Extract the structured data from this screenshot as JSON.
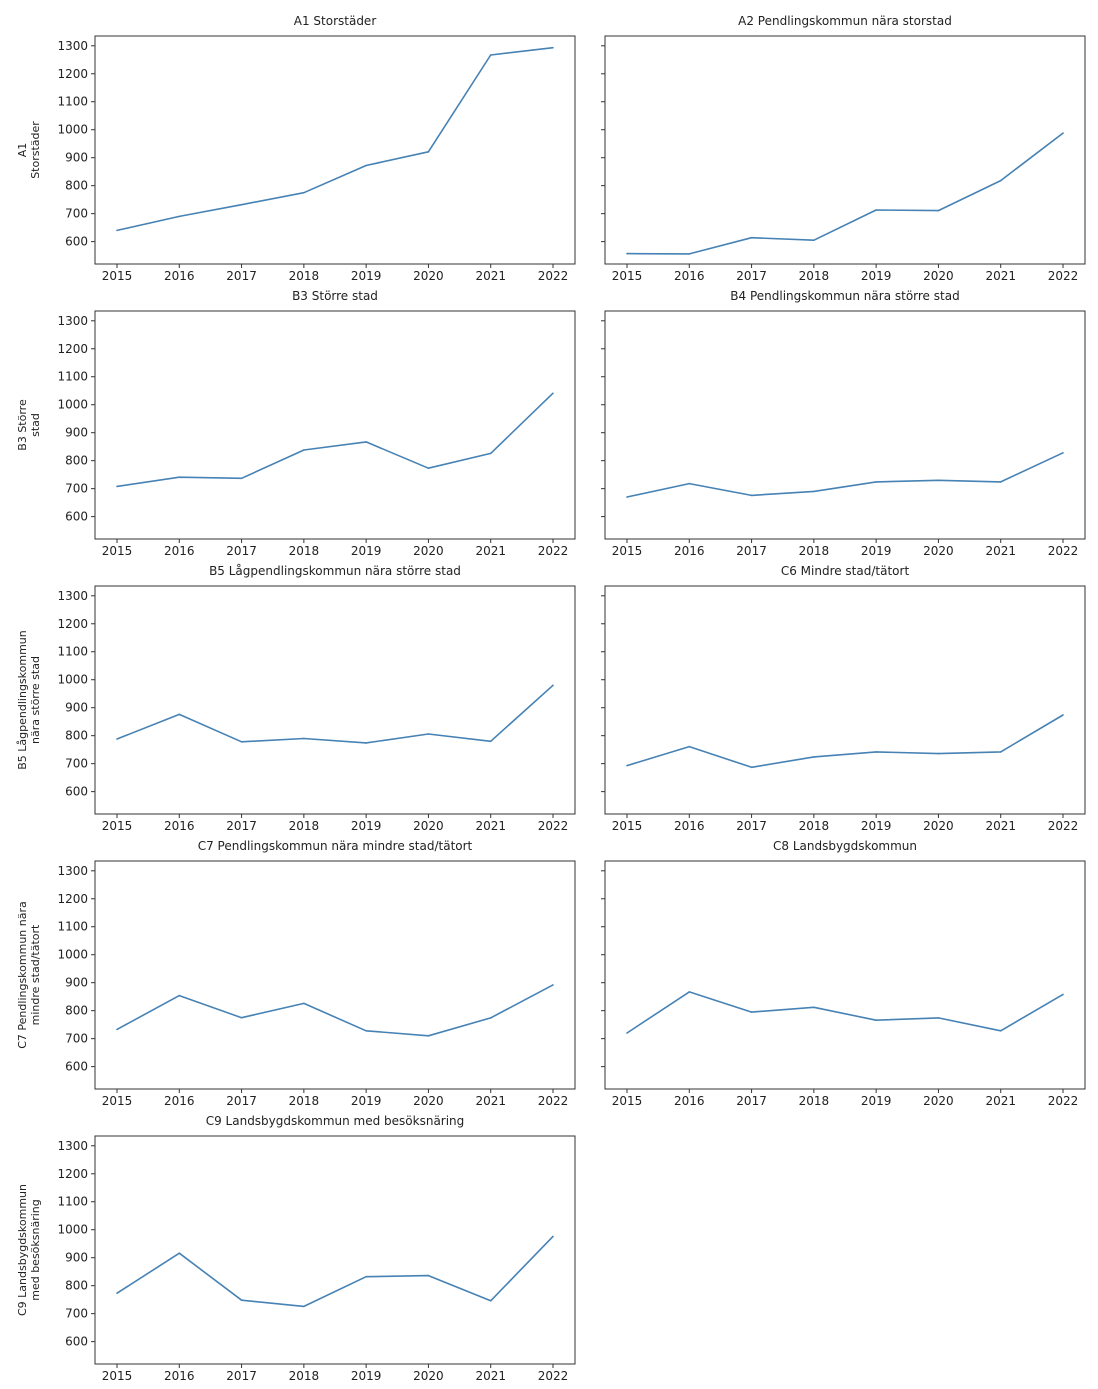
{
  "line_color": "#4682b4",
  "chart_data": [
    {
      "type": "line",
      "title": "A1 Storstäder",
      "ylabel": [
        "A1",
        "Storstäder"
      ],
      "x": [
        "2015",
        "2016",
        "2017",
        "2018",
        "2019",
        "2020",
        "2021",
        "2022"
      ],
      "y": [
        640,
        690,
        732,
        775,
        872,
        921,
        1267,
        1293
      ],
      "ylim": [
        520,
        1335
      ],
      "yticks": [
        600,
        700,
        800,
        900,
        1000,
        1100,
        1200,
        1300
      ],
      "show_ytick_labels": true
    },
    {
      "type": "line",
      "title": "A2 Pendlingskommun nära storstad",
      "ylabel": [],
      "x": [
        "2015",
        "2016",
        "2017",
        "2018",
        "2019",
        "2020",
        "2021",
        "2022"
      ],
      "y": [
        557,
        556,
        614,
        605,
        713,
        711,
        818,
        988
      ],
      "ylim": [
        520,
        1335
      ],
      "yticks": [
        600,
        700,
        800,
        900,
        1000,
        1100,
        1200,
        1300
      ],
      "show_ytick_labels": false
    },
    {
      "type": "line",
      "title": "B3 Större stad",
      "ylabel": [
        "B3 Större",
        "stad"
      ],
      "x": [
        "2015",
        "2016",
        "2017",
        "2018",
        "2019",
        "2020",
        "2021",
        "2022"
      ],
      "y": [
        708,
        741,
        737,
        838,
        867,
        773,
        826,
        1041
      ],
      "ylim": [
        520,
        1335
      ],
      "yticks": [
        600,
        700,
        800,
        900,
        1000,
        1100,
        1200,
        1300
      ],
      "show_ytick_labels": true
    },
    {
      "type": "line",
      "title": "B4 Pendlingskommun nära större stad",
      "ylabel": [],
      "x": [
        "2015",
        "2016",
        "2017",
        "2018",
        "2019",
        "2020",
        "2021",
        "2022"
      ],
      "y": [
        670,
        718,
        676,
        690,
        724,
        730,
        724,
        828
      ],
      "ylim": [
        520,
        1335
      ],
      "yticks": [
        600,
        700,
        800,
        900,
        1000,
        1100,
        1200,
        1300
      ],
      "show_ytick_labels": false
    },
    {
      "type": "line",
      "title": "B5 Lågpendlingskommun nära större stad",
      "ylabel": [
        "B5 Lågpendlingskommun",
        "nära större stad"
      ],
      "x": [
        "2015",
        "2016",
        "2017",
        "2018",
        "2019",
        "2020",
        "2021",
        "2022"
      ],
      "y": [
        788,
        876,
        778,
        790,
        774,
        806,
        780,
        980
      ],
      "ylim": [
        520,
        1335
      ],
      "yticks": [
        600,
        700,
        800,
        900,
        1000,
        1100,
        1200,
        1300
      ],
      "show_ytick_labels": true
    },
    {
      "type": "line",
      "title": "C6 Mindre stad/tätort",
      "ylabel": [],
      "x": [
        "2015",
        "2016",
        "2017",
        "2018",
        "2019",
        "2020",
        "2021",
        "2022"
      ],
      "y": [
        693,
        761,
        687,
        724,
        742,
        736,
        742,
        874
      ],
      "ylim": [
        520,
        1335
      ],
      "yticks": [
        600,
        700,
        800,
        900,
        1000,
        1100,
        1200,
        1300
      ],
      "show_ytick_labels": false
    },
    {
      "type": "line",
      "title": "C7 Pendlingskommun nära mindre stad/tätort",
      "ylabel": [
        "C7 Pendlingskommun nära",
        "mindre stad/tätort"
      ],
      "x": [
        "2015",
        "2016",
        "2017",
        "2018",
        "2019",
        "2020",
        "2021",
        "2022"
      ],
      "y": [
        733,
        854,
        775,
        826,
        728,
        710,
        774,
        892
      ],
      "ylim": [
        520,
        1335
      ],
      "yticks": [
        600,
        700,
        800,
        900,
        1000,
        1100,
        1200,
        1300
      ],
      "show_ytick_labels": true
    },
    {
      "type": "line",
      "title": "C8 Landsbygdskommun",
      "ylabel": [],
      "x": [
        "2015",
        "2016",
        "2017",
        "2018",
        "2019",
        "2020",
        "2021",
        "2022"
      ],
      "y": [
        720,
        867,
        795,
        812,
        766,
        774,
        728,
        858
      ],
      "ylim": [
        520,
        1335
      ],
      "yticks": [
        600,
        700,
        800,
        900,
        1000,
        1100,
        1200,
        1300
      ],
      "show_ytick_labels": false
    },
    {
      "type": "line",
      "title": "C9 Landsbygdskommun med besöksnäring",
      "ylabel": [
        "C9 Landsbygdskommun",
        "med besöksnäring"
      ],
      "x": [
        "2015",
        "2016",
        "2017",
        "2018",
        "2019",
        "2020",
        "2021",
        "2022"
      ],
      "y": [
        773,
        916,
        748,
        726,
        832,
        836,
        746,
        976
      ],
      "ylim": [
        520,
        1335
      ],
      "yticks": [
        600,
        700,
        800,
        900,
        1000,
        1100,
        1200,
        1300
      ],
      "show_ytick_labels": true
    }
  ]
}
